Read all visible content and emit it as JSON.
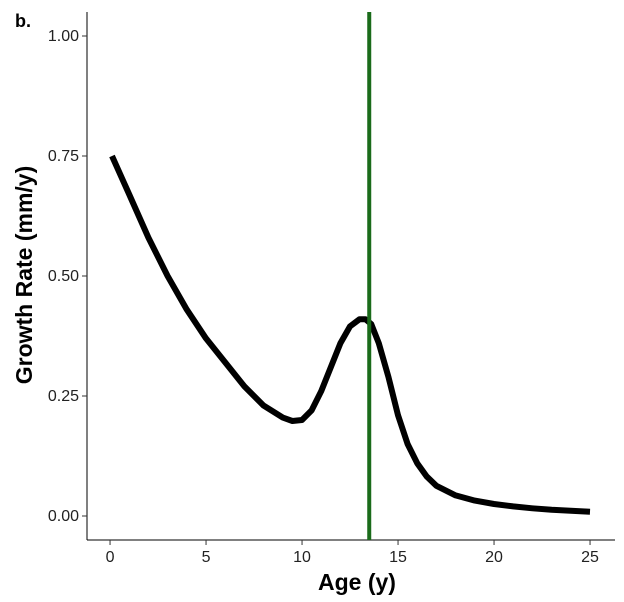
{
  "panel_label": "b.",
  "chart_data": {
    "type": "line",
    "title": "",
    "xlabel": "Age (y)",
    "ylabel": "Growth Rate (mm/y)",
    "xlim": [
      -1.2,
      26.3
    ],
    "ylim": [
      -0.05,
      1.05
    ],
    "x_ticks": [
      0,
      5,
      10,
      15,
      20,
      25
    ],
    "x_tick_labels": [
      "0",
      "5",
      "10",
      "15",
      "20",
      "25"
    ],
    "y_ticks": [
      0.0,
      0.25,
      0.5,
      0.75,
      1.0
    ],
    "y_tick_labels": [
      "0.00",
      "0.25",
      "0.50",
      "0.75",
      "1.00"
    ],
    "grid": false,
    "legend": "none",
    "series": [
      {
        "color": "#000000",
        "x": [
          0.1,
          1,
          2,
          3,
          4,
          5,
          6,
          7,
          8,
          9,
          9.5,
          10,
          10.5,
          11,
          11.5,
          12,
          12.5,
          13,
          13.3,
          13.6,
          14,
          14.5,
          15,
          15.5,
          16,
          16.5,
          17,
          18,
          19,
          20,
          21,
          22,
          23,
          24,
          25
        ],
        "y": [
          0.75,
          0.67,
          0.58,
          0.5,
          0.43,
          0.37,
          0.32,
          0.27,
          0.23,
          0.205,
          0.198,
          0.2,
          0.22,
          0.26,
          0.31,
          0.36,
          0.395,
          0.41,
          0.41,
          0.4,
          0.36,
          0.29,
          0.21,
          0.15,
          0.11,
          0.082,
          0.063,
          0.043,
          0.032,
          0.025,
          0.02,
          0.016,
          0.013,
          0.011,
          0.009
        ]
      }
    ],
    "vertical_line": {
      "x": 13.5,
      "color": "#1a6b1a"
    }
  }
}
